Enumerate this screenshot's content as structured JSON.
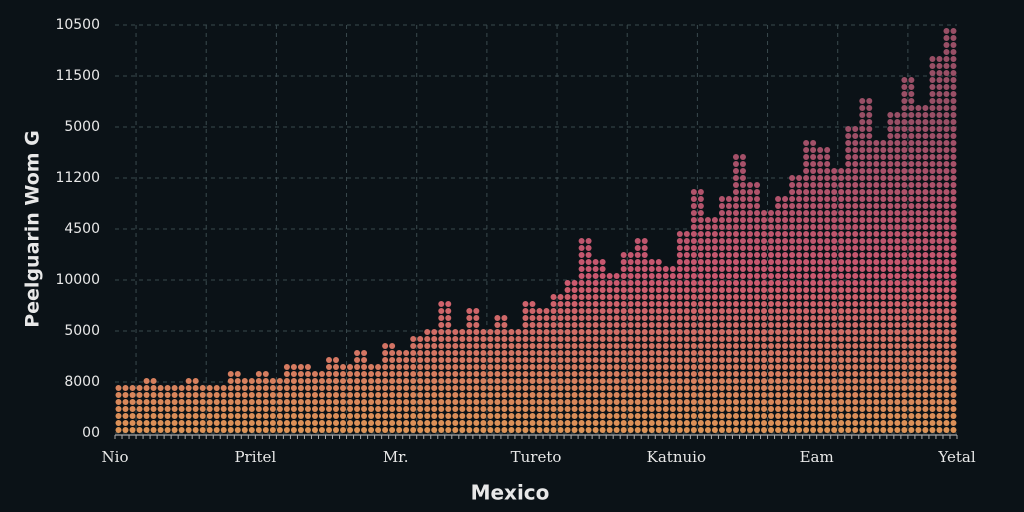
{
  "chart_data": {
    "type": "dot-column",
    "y_label": "Peelguarin Wom G",
    "x_label": "Mexico",
    "x_labels": [
      "Nio",
      "Pritel",
      "Mr.",
      "Tureto",
      "Katnuio",
      "Eam",
      "Yetal"
    ],
    "ylim": [
      0,
      8
    ],
    "yticks": [
      {
        "value": 0,
        "label": "00"
      },
      {
        "value": 1,
        "label": "8000"
      },
      {
        "value": 2,
        "label": "5000"
      },
      {
        "value": 3,
        "label": "10000"
      },
      {
        "value": 4,
        "label": "4500"
      },
      {
        "value": 5,
        "label": "11200"
      },
      {
        "value": 6,
        "label": "5000"
      },
      {
        "value": 7,
        "label": "11500"
      },
      {
        "value": 8,
        "label": "10500"
      }
    ],
    "grid": true,
    "colors": [
      "#f4a35c",
      "#e0607a",
      "#a8566f"
    ],
    "values": [
      1.0,
      0.9,
      1.1,
      0.9,
      1.0,
      1.1,
      0.9,
      1.0,
      1.2,
      1.1,
      1.2,
      1.1,
      1.3,
      1.4,
      1.2,
      1.5,
      1.3,
      1.6,
      1.4,
      1.8,
      1.7,
      1.9,
      2.0,
      2.6,
      2.1,
      2.4,
      2.0,
      2.3,
      2.1,
      2.6,
      2.5,
      2.7,
      3.0,
      3.9,
      3.4,
      3.1,
      3.6,
      3.9,
      3.4,
      3.3,
      4.0,
      4.8,
      4.3,
      4.6,
      5.5,
      4.9,
      4.4,
      4.7,
      5.0,
      5.8,
      5.6,
      5.2,
      6.0,
      6.6,
      5.8,
      6.3,
      7.0,
      6.5,
      7.4,
      8.0
    ]
  }
}
